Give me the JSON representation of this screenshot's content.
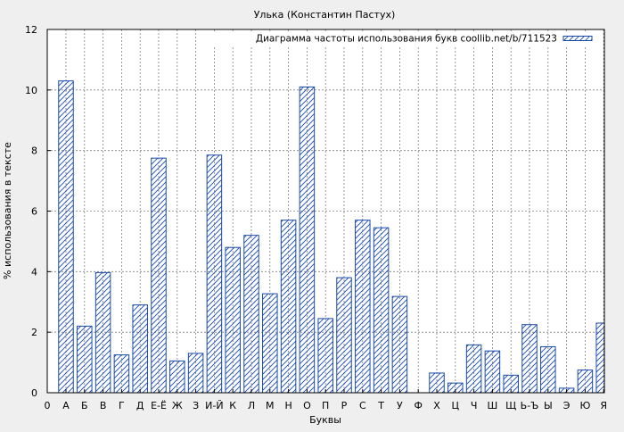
{
  "chart_data": {
    "type": "bar",
    "title": "Улька (Константин Пастух)",
    "xlabel": "Буквы",
    "ylabel": "% использования в тексте",
    "legend": {
      "label": "Диаграмма частоты использования букв coollib.net/b/711523",
      "placement": "top-right"
    },
    "ylim": [
      0,
      12
    ],
    "yticks": [
      0,
      2,
      4,
      6,
      8,
      10,
      12
    ],
    "grid": true,
    "bar_color": "#1a4aa8",
    "axis_origin_label": "0",
    "categories": [
      "А",
      "Б",
      "В",
      "Г",
      "Д",
      "Е-Ё",
      "Ж",
      "З",
      "И-Й",
      "К",
      "Л",
      "М",
      "Н",
      "О",
      "П",
      "Р",
      "С",
      "Т",
      "У",
      "Ф",
      "Х",
      "Ц",
      "Ч",
      "Ш",
      "Щ",
      "Ь-Ъ",
      "Ы",
      "Э",
      "Ю",
      "Я"
    ],
    "values": [
      10.3,
      2.2,
      3.97,
      1.25,
      2.9,
      7.75,
      1.05,
      1.3,
      7.85,
      4.8,
      5.2,
      3.27,
      5.7,
      10.1,
      2.45,
      3.8,
      5.7,
      5.45,
      3.18,
      0.0,
      0.65,
      0.32,
      1.58,
      1.38,
      0.58,
      2.25,
      1.52,
      0.15,
      0.75,
      2.3
    ]
  }
}
